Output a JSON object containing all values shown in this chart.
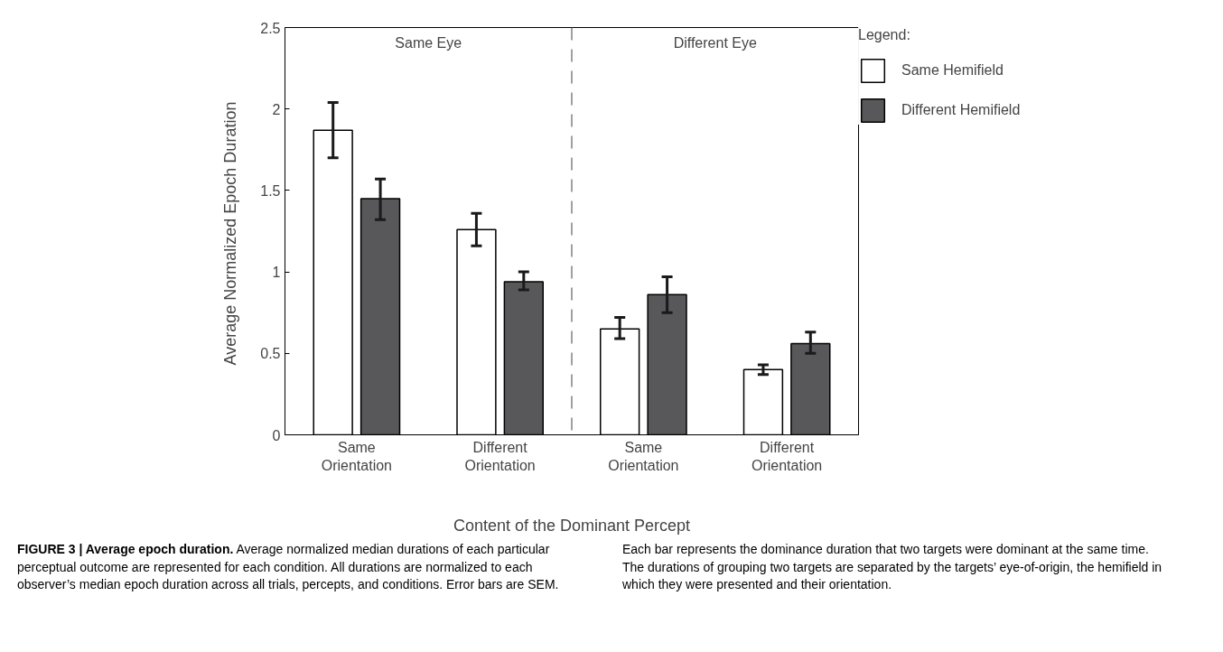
{
  "chart_data": {
    "type": "bar",
    "xlabel": "Content of the Dominant Percept",
    "ylabel": "Average Normalized  Epoch Duration",
    "legend_title": "Legend:",
    "categories": [
      "Same\nOrientation",
      "Different\nOrientation",
      "Same\nOrientation",
      "Different\nOrientation"
    ],
    "series": [
      {
        "name": "Same Hemifield",
        "color": "#ffffff",
        "values": [
          1.87,
          1.26,
          0.65,
          0.4
        ],
        "errors": [
          [
            1.7,
            2.04
          ],
          [
            1.16,
            1.36
          ],
          [
            0.59,
            0.72
          ],
          [
            0.37,
            0.43
          ]
        ]
      },
      {
        "name": "Different Hemifield",
        "color": "#58585a",
        "values": [
          1.45,
          0.94,
          0.86,
          0.56
        ],
        "errors": [
          [
            1.32,
            1.57
          ],
          [
            0.89,
            1.0
          ],
          [
            0.75,
            0.97
          ],
          [
            0.5,
            0.63
          ]
        ]
      }
    ],
    "ylim": [
      0,
      2.5
    ],
    "yticks": [
      0,
      0.5,
      1,
      1.5,
      2,
      2.5
    ],
    "grid": false,
    "legend": "right",
    "annotations": [
      "Same Eye",
      "Different Eye",
      "FIGURE 3 | Average epoch duration.",
      "Average normalized median durations of each particular perceptual outcome are represented for each condition. All durations are normalized to each observer’s median epoch duration across all trials, percepts, and conditions. Error bars are SEM. Each bar represents the dominance duration that two targets were dominant at the same time. The durations of grouping two targets are separated by the targets’ eye-of-origin, the hemifield in which they were presented and their orientation."
    ]
  }
}
